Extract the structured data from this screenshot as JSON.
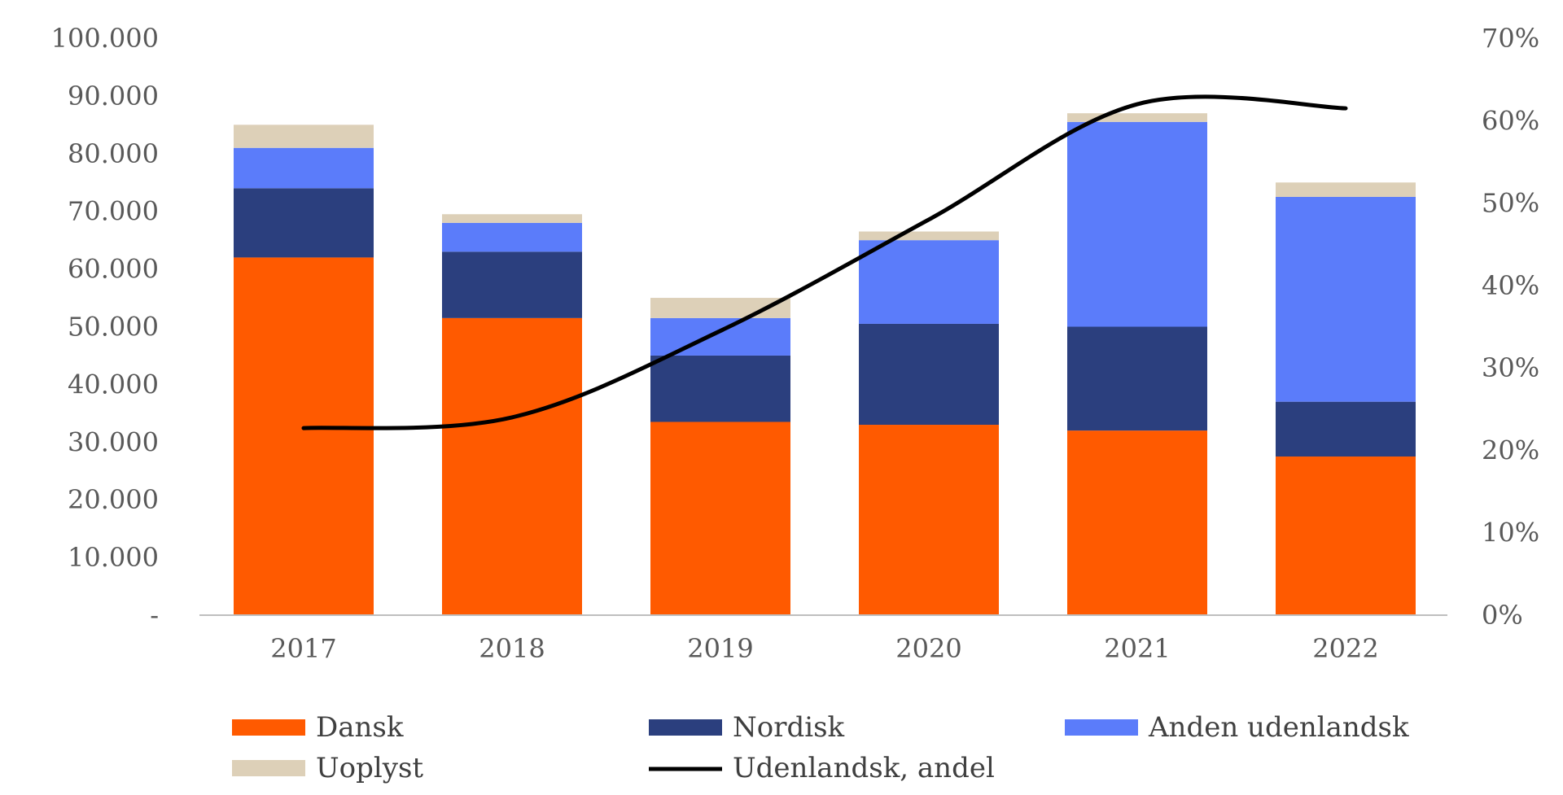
{
  "chart_data": {
    "type": "bar",
    "stacked": true,
    "title": "",
    "xlabel": "",
    "ylabel": "",
    "categories": [
      "2017",
      "2018",
      "2019",
      "2020",
      "2021",
      "2022"
    ],
    "ylim": [
      0,
      100000
    ],
    "y2lim": [
      0,
      0.7
    ],
    "y_ticks": [
      "-",
      "10.000",
      "20.000",
      "30.000",
      "40.000",
      "50.000",
      "60.000",
      "70.000",
      "80.000",
      "90.000",
      "100.000"
    ],
    "y2_ticks": [
      "0%",
      "10%",
      "20%",
      "30%",
      "40%",
      "50%",
      "60%",
      "70%"
    ],
    "grid": false,
    "legend_position": "bottom",
    "series": [
      {
        "name": "Dansk",
        "color": "#ff5a00",
        "values": [
          62000,
          51500,
          33500,
          33000,
          32000,
          27500
        ]
      },
      {
        "name": "Nordisk",
        "color": "#2b3f7e",
        "values": [
          12000,
          11500,
          11500,
          17500,
          18000,
          9500
        ]
      },
      {
        "name": "Anden udenlandsk",
        "color": "#5b7cfa",
        "values": [
          7000,
          5000,
          6500,
          14500,
          35500,
          35500
        ]
      },
      {
        "name": "Uoplyst",
        "color": "#ddd0b8",
        "values": [
          4000,
          1500,
          3500,
          1500,
          1500,
          2500
        ]
      }
    ],
    "line_series": {
      "name": "Udenlandsk, andel",
      "color": "#000000",
      "axis": "right",
      "values": [
        0.227,
        0.24,
        0.345,
        0.48,
        0.62,
        0.615
      ]
    }
  }
}
